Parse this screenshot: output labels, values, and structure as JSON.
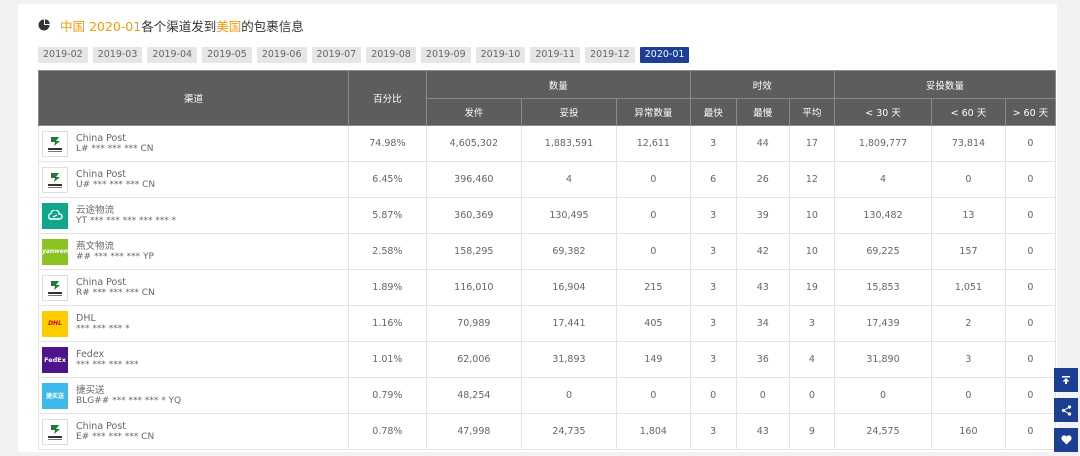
{
  "title": {
    "prefix": "中国 2020-01",
    "mid": "各个渠道发到 ",
    "country": "美国",
    "suffix": " 的包裹信息"
  },
  "months": [
    "2019-02",
    "2019-03",
    "2019-04",
    "2019-05",
    "2019-06",
    "2019-07",
    "2019-08",
    "2019-09",
    "2019-10",
    "2019-11",
    "2019-12",
    "2020-01"
  ],
  "active_month": "2020-01",
  "headers": {
    "channel": "渠道",
    "percent": "百分比",
    "quantity": "数量",
    "timeliness": "时效",
    "delivered_count": "妥投数量",
    "sent": "发件",
    "delivered": "妥投",
    "exception": "异常数量",
    "fastest": "最快",
    "slowest": "最慢",
    "average": "平均",
    "lt30": "< 30 天",
    "lt60": "< 60 天",
    "gt60": "> 60 天"
  },
  "rows": [
    {
      "logo": "china-post-icon",
      "name": "China Post",
      "track": "L# *** *** *** CN",
      "percent": "74.98%",
      "sent": "4,605,302",
      "delivered": "1,883,591",
      "exception": "12,611",
      "fastest": "3",
      "slowest": "44",
      "average": "17",
      "lt30": "1,809,777",
      "lt60": "73,814",
      "gt60": "0"
    },
    {
      "logo": "china-post-icon",
      "name": "China Post",
      "track": "U# *** *** *** CN",
      "percent": "6.45%",
      "sent": "396,460",
      "delivered": "4",
      "exception": "0",
      "fastest": "6",
      "slowest": "26",
      "average": "12",
      "lt30": "4",
      "lt60": "0",
      "gt60": "0"
    },
    {
      "logo": "yuntu-icon",
      "name": "云途物流",
      "track": "YT *** *** *** *** *** *",
      "percent": "5.87%",
      "sent": "360,369",
      "delivered": "130,495",
      "exception": "0",
      "fastest": "3",
      "slowest": "39",
      "average": "10",
      "lt30": "130,482",
      "lt60": "13",
      "gt60": "0"
    },
    {
      "logo": "yanwen-icon",
      "name": "燕文物流",
      "track": "## *** *** *** YP",
      "percent": "2.58%",
      "sent": "158,295",
      "delivered": "69,382",
      "exception": "0",
      "fastest": "3",
      "slowest": "42",
      "average": "10",
      "lt30": "69,225",
      "lt60": "157",
      "gt60": "0"
    },
    {
      "logo": "china-post-icon",
      "name": "China Post",
      "track": "R# *** *** *** CN",
      "percent": "1.89%",
      "sent": "116,010",
      "delivered": "16,904",
      "exception": "215",
      "fastest": "3",
      "slowest": "43",
      "average": "19",
      "lt30": "15,853",
      "lt60": "1,051",
      "gt60": "0"
    },
    {
      "logo": "dhl-icon",
      "name": "DHL",
      "track": "*** *** *** *",
      "percent": "1.16%",
      "sent": "70,989",
      "delivered": "17,441",
      "exception": "405",
      "fastest": "3",
      "slowest": "34",
      "average": "3",
      "lt30": "17,439",
      "lt60": "2",
      "gt60": "0"
    },
    {
      "logo": "fedex-icon",
      "name": "Fedex",
      "track": "*** *** *** ***",
      "percent": "1.01%",
      "sent": "62,006",
      "delivered": "31,893",
      "exception": "149",
      "fastest": "3",
      "slowest": "36",
      "average": "4",
      "lt30": "31,890",
      "lt60": "3",
      "gt60": "0"
    },
    {
      "logo": "jiemaisong-icon",
      "name": "捷买送",
      "track": "BLG## *** *** *** * YQ",
      "percent": "0.79%",
      "sent": "48,254",
      "delivered": "0",
      "exception": "0",
      "fastest": "0",
      "slowest": "0",
      "average": "0",
      "lt30": "0",
      "lt60": "0",
      "gt60": "0"
    },
    {
      "logo": "china-post-icon",
      "name": "China Post",
      "track": "E# *** *** *** CN",
      "percent": "0.78%",
      "sent": "47,998",
      "delivered": "24,735",
      "exception": "1,804",
      "fastest": "3",
      "slowest": "43",
      "average": "9",
      "lt30": "24,575",
      "lt60": "160",
      "gt60": "0"
    }
  ],
  "colors": {
    "accent": "#f39c12",
    "active": "#1c3f94",
    "header": "#5d5d5d"
  }
}
